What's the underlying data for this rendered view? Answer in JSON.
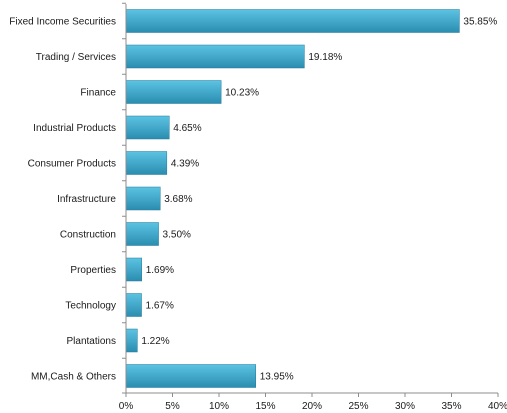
{
  "chart_data": {
    "type": "bar",
    "orientation": "horizontal",
    "categories": [
      "Fixed Income Securities",
      "Trading / Services",
      "Finance",
      "Industrial Products",
      "Consumer Products",
      "Infrastructure",
      "Construction",
      "Properties",
      "Technology",
      "Plantations",
      "MM,Cash & Others"
    ],
    "values": [
      35.85,
      19.18,
      10.23,
      4.65,
      4.39,
      3.68,
      3.5,
      1.69,
      1.67,
      1.22,
      13.95
    ],
    "value_labels": [
      "35.85%",
      "19.18%",
      "10.23%",
      "4.65%",
      "4.39%",
      "3.68%",
      "3.50%",
      "1.69%",
      "1.67%",
      "1.22%",
      "13.95%"
    ],
    "xlim": [
      0,
      40
    ],
    "x_ticks": [
      0,
      5,
      10,
      15,
      20,
      25,
      30,
      35,
      40
    ],
    "x_tick_labels": [
      "0%",
      "5%",
      "10%",
      "15%",
      "20%",
      "25%",
      "30%",
      "35%",
      "40%"
    ],
    "title": "",
    "xlabel": "",
    "ylabel": "",
    "grid": false,
    "legend": "none",
    "colors": {
      "bar_top": "#5cc3e3",
      "bar_bottom": "#2a8db0",
      "bar_edge": "#23799a",
      "axis": "#8c8c8c"
    }
  }
}
